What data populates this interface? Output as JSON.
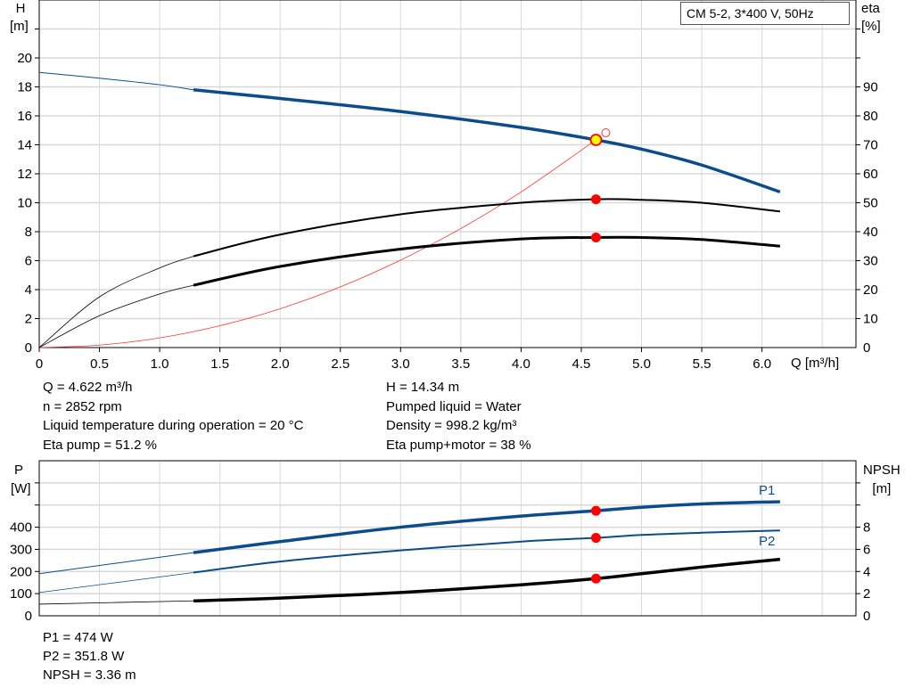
{
  "title_box": "CM 5-2, 3*400 V, 50Hz",
  "colors": {
    "pump_curve": "#0b4c8a",
    "efficiency": "#000000",
    "system_curve": "#ff3333",
    "duty_point": "#ff0000",
    "duty_point_fill": "#ffff00",
    "grid": "#d8d8d8"
  },
  "info_left": [
    "Q = 4.622 m³/h",
    "n = 2852 rpm",
    "Liquid temperature during operation = 20 °C",
    "Eta pump = 51.2 %"
  ],
  "info_right": [
    "H = 14.34 m",
    "Pumped liquid = Water",
    "Density = 998.2 kg/m³",
    "Eta pump+motor = 38 %"
  ],
  "info_bottom": [
    "P1 = 474 W",
    "P2 = 351.8 W",
    "NPSH = 3.36 m"
  ],
  "chart_data": [
    {
      "type": "line",
      "xlabel": "Q [m³/h]",
      "ylabel_left": [
        "H",
        "[m]"
      ],
      "ylabel_right": [
        "eta",
        "[%]"
      ],
      "x_ticks": [
        "0",
        "0.5",
        "1.0",
        "1.5",
        "2.0",
        "2.5",
        "3.0",
        "3.5",
        "4.0",
        "4.5",
        "5.0",
        "5.5",
        "6.0"
      ],
      "y_ticks_left": [
        "0",
        "2",
        "4",
        "6",
        "8",
        "10",
        "12",
        "14",
        "16",
        "18",
        "20"
      ],
      "y_ticks_right": [
        "0",
        "10",
        "20",
        "30",
        "40",
        "50",
        "60",
        "70",
        "80",
        "90"
      ],
      "xlim": [
        0,
        6.78
      ],
      "ylim_left": [
        0,
        24
      ],
      "ylim_right": [
        0,
        120
      ],
      "grid": true,
      "duty_point": {
        "Q": 4.622,
        "H": 14.34,
        "eta_pump": 51.2,
        "eta_pump_motor": 38
      },
      "series": [
        {
          "key": "H",
          "axis": "left",
          "x": [
            0,
            0.5,
            1.0,
            1.28,
            2,
            3,
            4,
            4.622,
            5,
            5.5,
            6.15
          ],
          "y": [
            19,
            18.6,
            18.15,
            17.8,
            17.2,
            16.3,
            15.2,
            14.34,
            13.7,
            12.6,
            10.75
          ]
        },
        {
          "key": "eta_pump",
          "axis": "right",
          "x": [
            0,
            0.5,
            1.0,
            1.28,
            2,
            3,
            4,
            4.622,
            5,
            5.5,
            6.15
          ],
          "y": [
            0,
            17.5,
            27.5,
            31.5,
            39,
            46,
            50,
            51.2,
            51,
            50,
            47
          ]
        },
        {
          "key": "eta_pump_motor",
          "axis": "right",
          "x": [
            0,
            0.5,
            1.0,
            1.28,
            2,
            3,
            4,
            4.622,
            5,
            5.5,
            6.15
          ],
          "y": [
            0,
            11,
            18.5,
            21.5,
            28,
            34,
            37.5,
            38,
            38,
            37.3,
            35
          ]
        },
        {
          "key": "system_curve",
          "axis": "left",
          "x": [
            0,
            0.5,
            1,
            1.5,
            2,
            2.5,
            3,
            3.5,
            4,
            4.622
          ],
          "y": [
            0,
            0.17,
            0.67,
            1.51,
            2.68,
            4.19,
            6.04,
            8.22,
            10.74,
            14.34
          ]
        }
      ]
    },
    {
      "type": "line",
      "ylabel_left": [
        "P",
        "[W]"
      ],
      "ylabel_right": [
        "NPSH",
        "[m]"
      ],
      "y_ticks_left": [
        "0",
        "100",
        "200",
        "300",
        "400"
      ],
      "y_ticks_right": [
        "0",
        "2",
        "4",
        "6",
        "8"
      ],
      "xlim": [
        0,
        6.78
      ],
      "ylim_left": [
        0,
        700
      ],
      "ylim_right": [
        0,
        14
      ],
      "grid": true,
      "series": [
        {
          "key": "P1",
          "name": "P1",
          "axis": "left",
          "x": [
            0,
            1.28,
            2,
            3,
            4,
            4.622,
            5,
            5.5,
            6.15
          ],
          "y": [
            190,
            285,
            335,
            400,
            450,
            474,
            490,
            505,
            515
          ]
        },
        {
          "key": "P2",
          "name": "P2",
          "axis": "left",
          "x": [
            0,
            1.28,
            2,
            3,
            4,
            4.622,
            5,
            5.5,
            6.15
          ],
          "y": [
            105,
            195,
            245,
            295,
            335,
            351.8,
            365,
            375,
            385
          ]
        },
        {
          "key": "NPSH",
          "axis": "right",
          "x": [
            0,
            1.28,
            2,
            3,
            4,
            4.622,
            5,
            5.5,
            6.15
          ],
          "y": [
            1.05,
            1.35,
            1.6,
            2.1,
            2.8,
            3.36,
            3.8,
            4.4,
            5.1
          ]
        }
      ]
    }
  ]
}
